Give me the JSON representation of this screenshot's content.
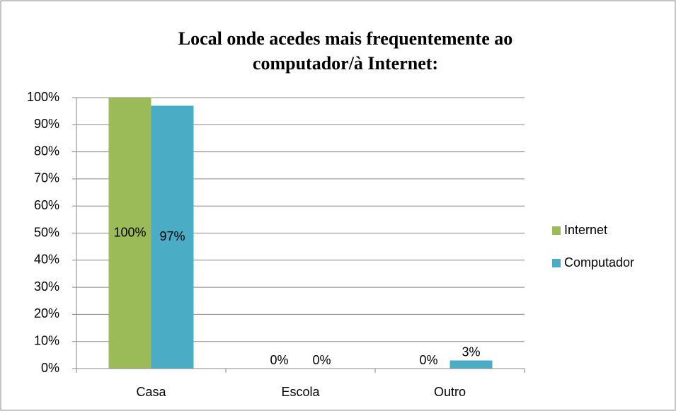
{
  "chart_data": {
    "type": "bar",
    "title": [
      "Local onde acedes mais frequentemente ao",
      "computador/à Internet:"
    ],
    "categories": [
      "Casa",
      "Escola",
      "Outro"
    ],
    "series": [
      {
        "name": "Internet",
        "color": "#9bbb59",
        "values": [
          100,
          0,
          0
        ],
        "value_labels": [
          "100%",
          "0%",
          "0%"
        ]
      },
      {
        "name": "Computador",
        "color": "#4bacc6",
        "values": [
          97,
          0,
          3
        ],
        "value_labels": [
          "97%",
          "0%",
          "3%"
        ]
      }
    ],
    "ylim": [
      0,
      100
    ],
    "yticks": [
      {
        "value": 0,
        "label": "0%"
      },
      {
        "value": 10,
        "label": "10%"
      },
      {
        "value": 20,
        "label": "20%"
      },
      {
        "value": 30,
        "label": "30%"
      },
      {
        "value": 40,
        "label": "40%"
      },
      {
        "value": 50,
        "label": "50%"
      },
      {
        "value": 60,
        "label": "60%"
      },
      {
        "value": 70,
        "label": "70%"
      },
      {
        "value": 80,
        "label": "80%"
      },
      {
        "value": 90,
        "label": "90%"
      },
      {
        "value": 100,
        "label": "100%"
      }
    ],
    "grid": true,
    "legend": "right"
  }
}
